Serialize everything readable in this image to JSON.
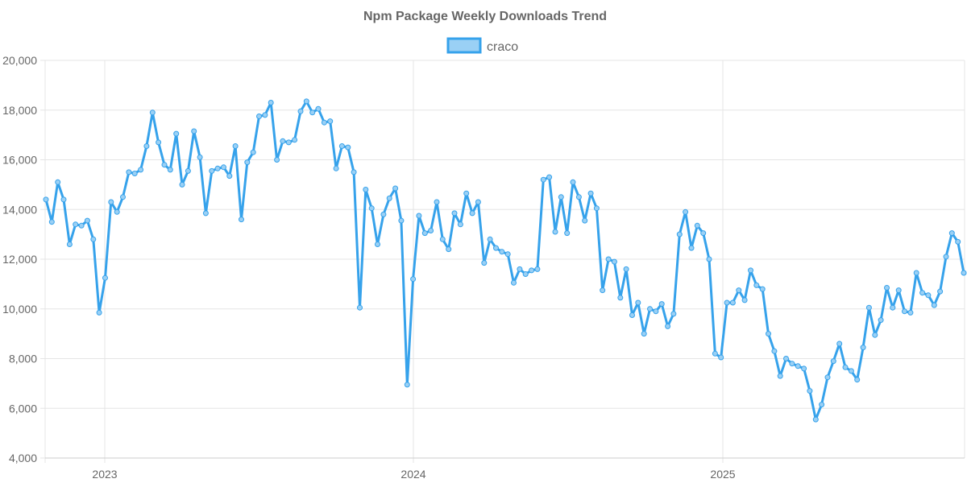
{
  "chart_data": {
    "type": "line",
    "title": "Npm Package Weekly Downloads Trend",
    "xlabel": "",
    "ylabel": "",
    "ylim": [
      4000,
      20000
    ],
    "yticks": [
      "4,000",
      "6,000",
      "8,000",
      "10,000",
      "12,000",
      "14,000",
      "16,000",
      "18,000",
      "20,000"
    ],
    "xticks": [
      "2023",
      "2024",
      "2025"
    ],
    "grid": true,
    "legend": "top-center",
    "colors": {
      "line": "#36a2eb",
      "fill": "#9ad0f5",
      "grid": "#e5e5e5",
      "text": "#666666"
    },
    "series": [
      {
        "name": "craco",
        "values": [
          14400,
          13500,
          15100,
          14400,
          12600,
          13400,
          13350,
          13550,
          12800,
          9850,
          11250,
          14300,
          13900,
          14500,
          15500,
          15450,
          15600,
          16550,
          17900,
          16700,
          15800,
          15600,
          17050,
          15000,
          15550,
          17150,
          16100,
          13850,
          15550,
          15650,
          15700,
          15350,
          16550,
          13600,
          15900,
          16300,
          17750,
          17800,
          18300,
          16000,
          16750,
          16700,
          16800,
          17950,
          18350,
          17900,
          18050,
          17500,
          17550,
          15650,
          16550,
          16500,
          15500,
          10050,
          14800,
          14050,
          12600,
          13800,
          14450,
          14850,
          13550,
          6950,
          11200,
          13750,
          13050,
          13150,
          14300,
          12800,
          12400,
          13850,
          13400,
          14650,
          13850,
          14300,
          11850,
          12800,
          12450,
          12300,
          12200,
          11050,
          11600,
          11400,
          11550,
          11600,
          15200,
          15300,
          13100,
          14500,
          13050,
          15100,
          14500,
          13550,
          14650,
          14050,
          10750,
          12000,
          11900,
          10450,
          11600,
          9750,
          10250,
          9000,
          10000,
          9900,
          10200,
          9300,
          9800,
          13000,
          13900,
          12450,
          13350,
          13050,
          12000,
          8200,
          8050,
          10250,
          10250,
          10750,
          10350,
          11550,
          10950,
          10800,
          9000,
          8300,
          7300,
          8000,
          7800,
          7700,
          7600,
          6700,
          5550,
          6150,
          7250,
          7900,
          8600,
          7650,
          7500,
          7150,
          8450,
          10050,
          8950,
          9550,
          10850,
          10050,
          10750,
          9900,
          9850,
          11450,
          10650,
          10550,
          10150,
          10700,
          12100,
          13050,
          12700,
          11450
        ]
      }
    ]
  }
}
